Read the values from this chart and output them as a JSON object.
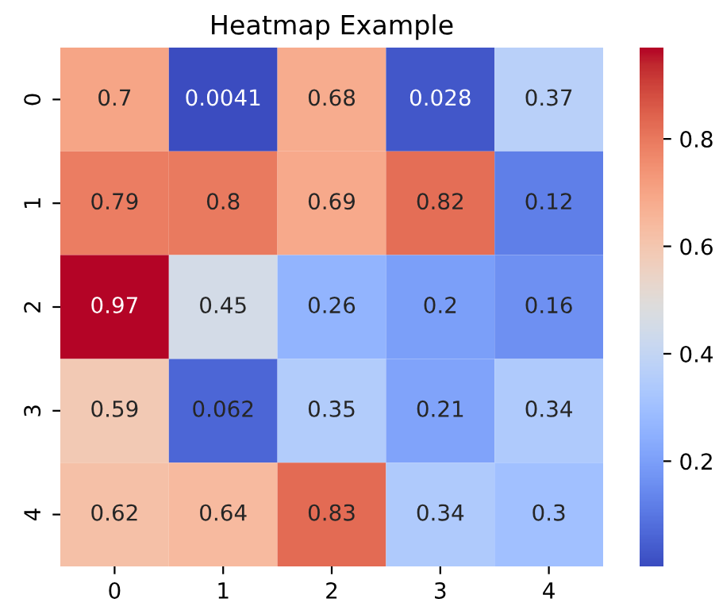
{
  "chart_data": {
    "type": "heatmap",
    "title": "Heatmap Example",
    "categories": [
      "0",
      "1",
      "2",
      "3",
      "4"
    ],
    "y_categories": [
      "0",
      "1",
      "2",
      "3",
      "4"
    ],
    "cells": [
      [
        0.7,
        0.0041,
        0.68,
        0.028,
        0.37
      ],
      [
        0.79,
        0.8,
        0.69,
        0.82,
        0.12
      ],
      [
        0.97,
        0.45,
        0.26,
        0.2,
        0.16
      ],
      [
        0.59,
        0.062,
        0.35,
        0.21,
        0.34
      ],
      [
        0.62,
        0.64,
        0.83,
        0.34,
        0.3
      ]
    ],
    "clim": [
      0.0041,
      0.97
    ],
    "cticks": [
      0.2,
      0.4,
      0.6,
      0.8
    ],
    "data_labels": true
  }
}
